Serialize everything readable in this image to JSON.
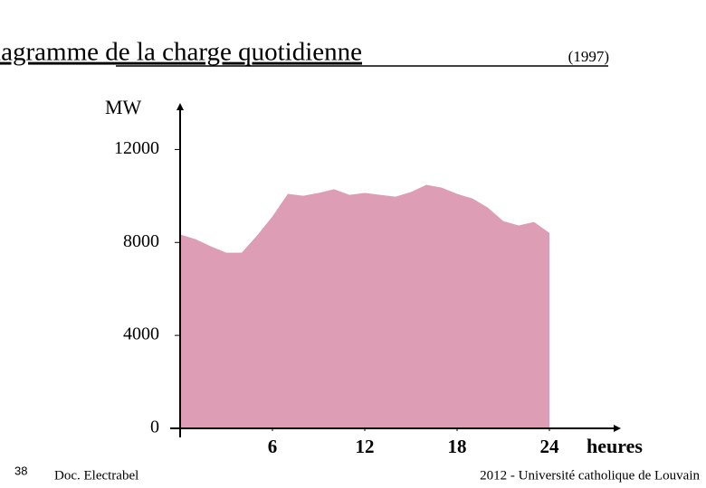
{
  "chart_data": {
    "type": "area",
    "title": "Diagramme de la charge quotidienne",
    "subtitle": "(1997)",
    "y_label": "MW",
    "x_label": "heures",
    "x": [
      0,
      1,
      2,
      3,
      4,
      5,
      6,
      7,
      8,
      9,
      10,
      11,
      12,
      13,
      14,
      15,
      16,
      17,
      18,
      19,
      20,
      21,
      22,
      23,
      24
    ],
    "values": [
      8340,
      8140,
      7830,
      7560,
      7560,
      8300,
      9120,
      10090,
      10010,
      10130,
      10290,
      10050,
      10130,
      10050,
      9970,
      10170,
      10480,
      10360,
      10090,
      9890,
      9500,
      8920,
      8730,
      8880,
      8410
    ],
    "color": "#dc9db5",
    "xlim": [
      0,
      28
    ],
    "xticks": [
      6,
      12,
      18,
      24
    ],
    "ylim": [
      0,
      14000
    ],
    "yticks": [
      0,
      4000,
      8000,
      12000
    ]
  },
  "page": {
    "slide_number": "38",
    "source": "Doc. Electrabel",
    "footer": "2012 - Université catholique de Louvain"
  }
}
